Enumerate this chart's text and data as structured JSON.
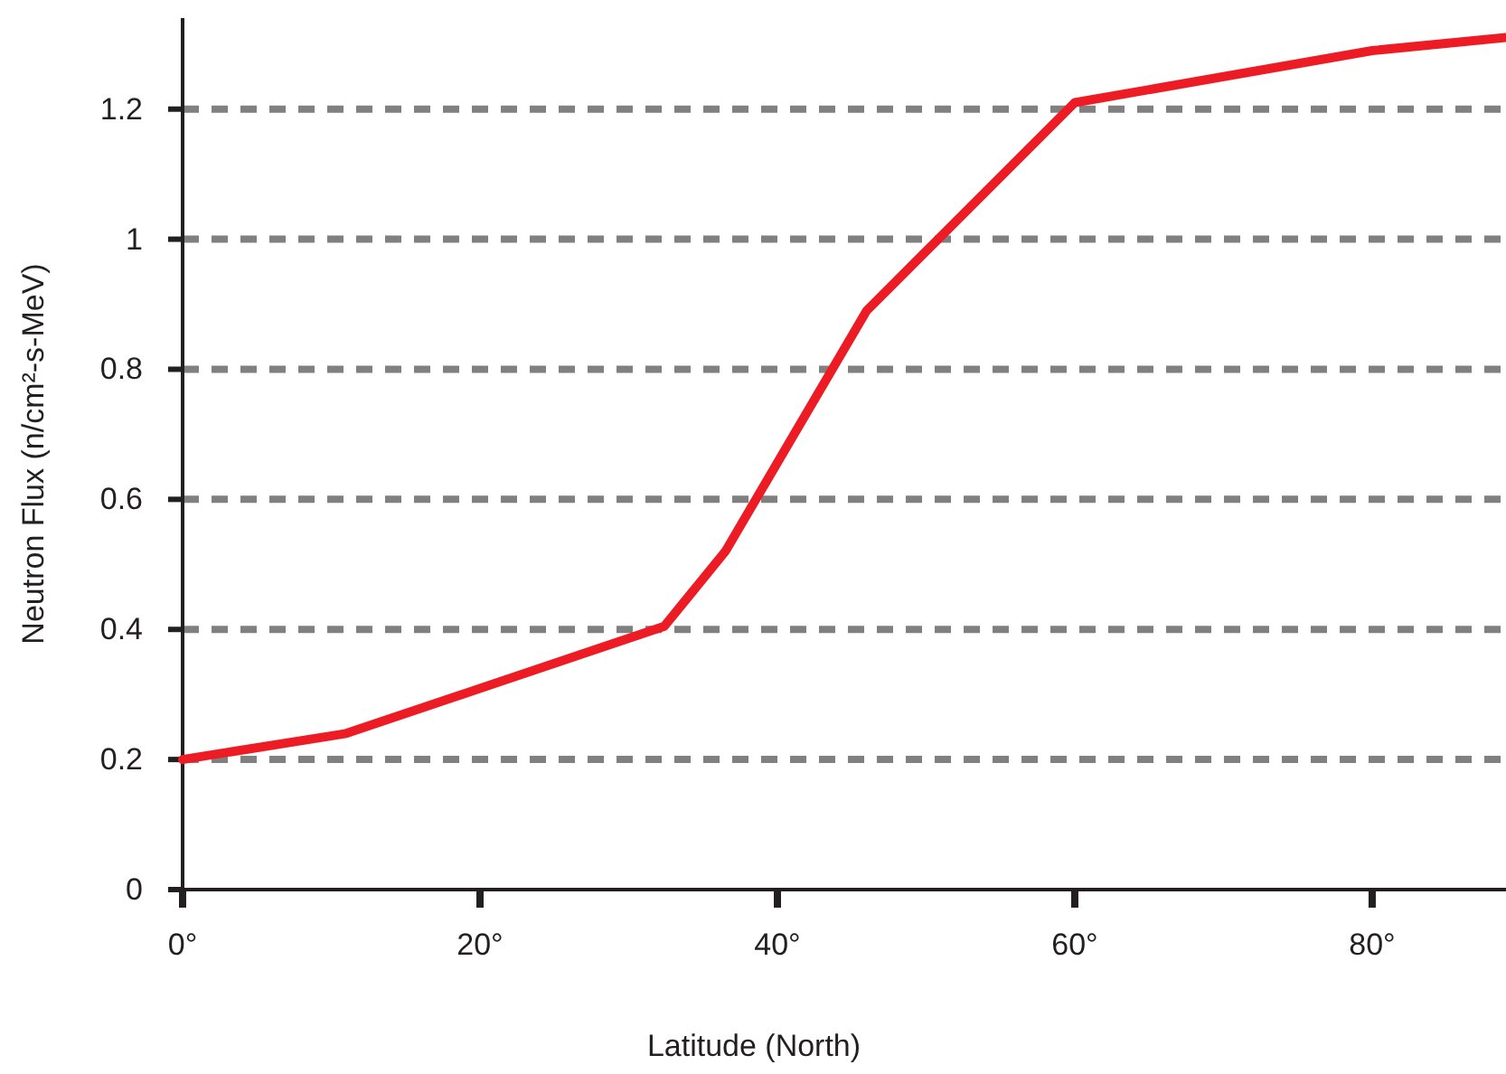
{
  "chart_data": {
    "type": "line",
    "xlabel": "Latitude (North)",
    "ylabel": "Neutron Flux (n/cm²-s-MeV)",
    "x": [
      0,
      11,
      32.4,
      36.5,
      46,
      60,
      80,
      89
    ],
    "series": [
      {
        "color": "#ed1c24",
        "values": [
          0.2,
          0.24,
          0.405,
          0.52,
          0.89,
          1.21,
          1.29,
          1.31
        ]
      }
    ],
    "xlim": [
      0,
      89
    ],
    "xticks": [
      {
        "value": 0,
        "label": "0°"
      },
      {
        "value": 20,
        "label": "20°"
      },
      {
        "value": 40,
        "label": "40°"
      },
      {
        "value": 60,
        "label": "60°"
      },
      {
        "value": 80,
        "label": "80°"
      }
    ],
    "ylim": [
      0,
      1.34
    ],
    "yticks": [
      0,
      0.2,
      0.4,
      0.6,
      0.8,
      1,
      1.2
    ],
    "grid": "y",
    "line_style": "solid",
    "marker": "none"
  }
}
